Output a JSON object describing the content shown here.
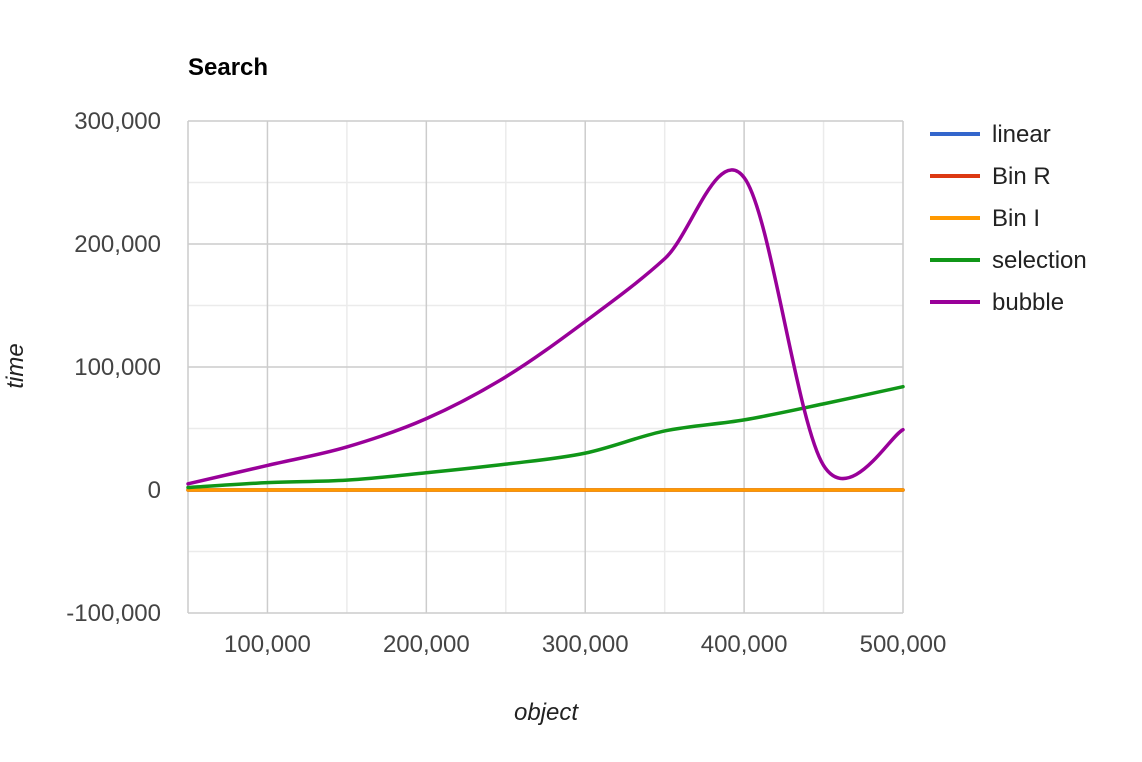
{
  "chart_data": {
    "type": "line",
    "title": "Search",
    "xlabel": "object",
    "ylabel": "time",
    "xlim": [
      50000,
      500000
    ],
    "ylim": [
      -100000,
      300000
    ],
    "x_ticks": [
      100000,
      200000,
      300000,
      400000,
      500000
    ],
    "x_tick_labels": [
      "100,000",
      "200,000",
      "300,000",
      "400,000",
      "500,000"
    ],
    "y_ticks": [
      -100000,
      0,
      100000,
      200000,
      300000
    ],
    "y_tick_labels": [
      "-100,000",
      "0",
      "100,000",
      "200,000",
      "300,000"
    ],
    "x_minor_gridlines": [
      150000,
      250000,
      350000,
      450000
    ],
    "y_minor_gridlines": [
      -50000,
      50000,
      150000,
      250000
    ],
    "grid": true,
    "legend_position": "right",
    "smooth": true,
    "x": [
      50000,
      100000,
      150000,
      200000,
      250000,
      300000,
      350000,
      400000,
      450000,
      500000
    ],
    "series": [
      {
        "name": "linear",
        "color": "#3366cc",
        "values": [
          0,
          0,
          0,
          0,
          0,
          0,
          0,
          0,
          0,
          0
        ]
      },
      {
        "name": "Bin R",
        "color": "#dc3912",
        "values": [
          0,
          0,
          0,
          0,
          0,
          0,
          0,
          0,
          0,
          0
        ]
      },
      {
        "name": "Bin I",
        "color": "#ff9900",
        "values": [
          0,
          0,
          0,
          0,
          0,
          0,
          0,
          0,
          0,
          0
        ]
      },
      {
        "name": "selection",
        "color": "#109618",
        "values": [
          2000,
          6000,
          8000,
          14000,
          21000,
          30000,
          48000,
          57000,
          70000,
          84000
        ]
      },
      {
        "name": "bubble",
        "color": "#990099",
        "values": [
          5000,
          20000,
          35000,
          58000,
          92000,
          137000,
          188000,
          254000,
          20000,
          49000
        ]
      }
    ]
  }
}
